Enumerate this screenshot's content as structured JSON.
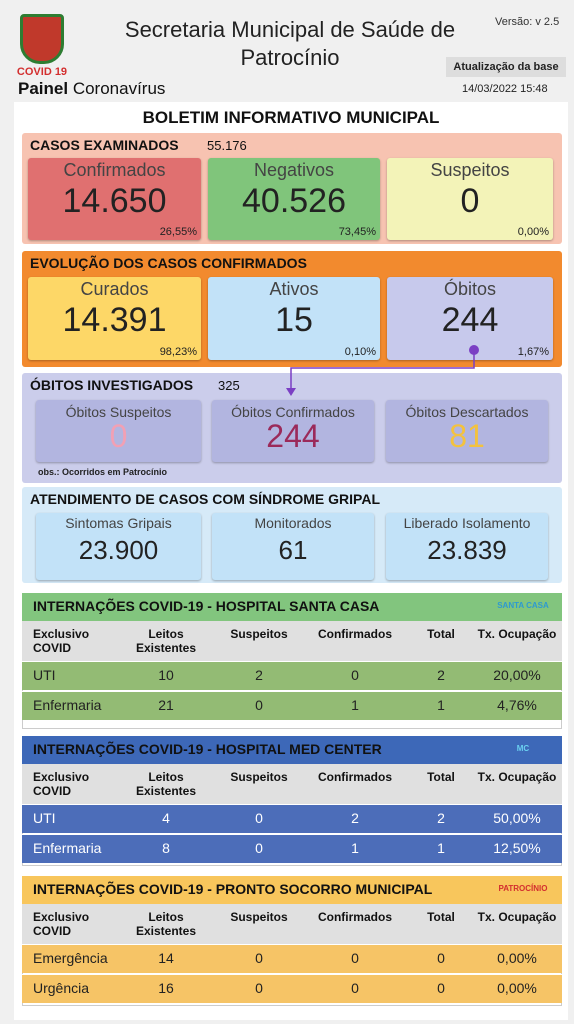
{
  "header": {
    "logo_caption": "COVID 19",
    "title": "Secretaria Municipal de Saúde de Patrocínio",
    "version": "Versão: v 2.5",
    "panel_bold": "Painel",
    "panel_rest": "Coronavírus",
    "update_label": "Atualização da base",
    "update_date": "14/03/2022 15:48"
  },
  "bulletin_title": "BOLETIM INFORMATIVO MUNICIPAL",
  "examined": {
    "title": "CASOS EXAMINADOS",
    "total": "55.176",
    "cards": [
      {
        "label": "Confirmados",
        "value": "14.650",
        "pct": "26,55%"
      },
      {
        "label": "Negativos",
        "value": "40.526",
        "pct": "73,45%"
      },
      {
        "label": "Suspeitos",
        "value": "0",
        "pct": "0,00%"
      }
    ]
  },
  "evolution": {
    "title": "EVOLUÇÃO DOS CASOS CONFIRMADOS",
    "cards": [
      {
        "label": "Curados",
        "value": "14.391",
        "pct": "98,23%"
      },
      {
        "label": "Ativos",
        "value": "15",
        "pct": "0,10%"
      },
      {
        "label": "Óbitos",
        "value": "244",
        "pct": "1,67%"
      }
    ]
  },
  "deaths": {
    "title": "ÓBITOS INVESTIGADOS",
    "total": "325",
    "cards": [
      {
        "label": "Óbitos Suspeitos",
        "value": "0"
      },
      {
        "label": "Óbitos Confirmados",
        "value": "244"
      },
      {
        "label": "Óbitos Descartados",
        "value": "81"
      }
    ],
    "note": "obs.: Ocorridos em Patrocínio"
  },
  "flu": {
    "title": "ATENDIMENTO DE CASOS COM SÍNDROME GRIPAL",
    "cards": [
      {
        "label": "Sintomas Gripais",
        "value": "23.900"
      },
      {
        "label": "Monitorados",
        "value": "61"
      },
      {
        "label": "Liberado Isolamento",
        "value": "23.839"
      }
    ]
  },
  "hospitals": [
    {
      "title": "INTERNAÇÕES COVID-19 - HOSPITAL SANTA CASA",
      "logo": "SANTA CASA",
      "columns": [
        "Exclusivo COVID",
        "Leitos Existentes",
        "Suspeitos",
        "Confirmados",
        "Total",
        "Tx. Ocupação"
      ],
      "rows": [
        [
          "UTI",
          "10",
          "2",
          "0",
          "2",
          "20,00%"
        ],
        [
          "Enfermaria",
          "21",
          "0",
          "1",
          "1",
          "4,76%"
        ]
      ]
    },
    {
      "title": "INTERNAÇÕES COVID-19 - HOSPITAL MED CENTER",
      "logo": "MC",
      "columns": [
        "Exclusivo COVID",
        "Leitos Existentes",
        "Suspeitos",
        "Confirmados",
        "Total",
        "Tx. Ocupação"
      ],
      "rows": [
        [
          "UTI",
          "4",
          "0",
          "2",
          "2",
          "50,00%"
        ],
        [
          "Enfermaria",
          "8",
          "0",
          "1",
          "1",
          "12,50%"
        ]
      ]
    },
    {
      "title": "INTERNAÇÕES COVID-19 - PRONTO SOCORRO MUNICIPAL",
      "logo": "PATROCÍNIO",
      "columns": [
        "Exclusivo COVID",
        "Leitos Existentes",
        "Suspeitos",
        "Confirmados",
        "Total",
        "Tx. Ocupação"
      ],
      "rows": [
        [
          "Emergência",
          "14",
          "0",
          "0",
          "0",
          "0,00%"
        ],
        [
          "Urgência",
          "16",
          "0",
          "0",
          "0",
          "0,00%"
        ]
      ]
    }
  ]
}
